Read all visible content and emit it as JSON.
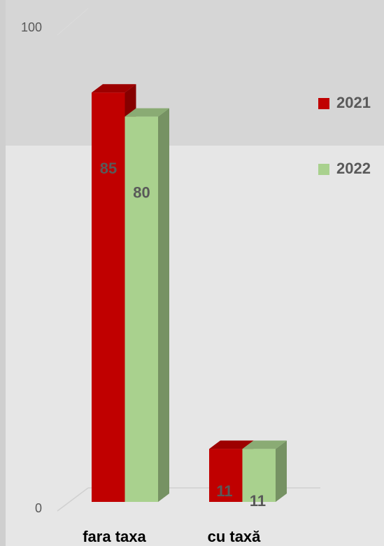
{
  "chart_data": {
    "type": "bar3d",
    "categories": [
      "fara taxa",
      "cu taxă"
    ],
    "series": [
      {
        "name": "2021",
        "color": "#c00000",
        "values": [
          85,
          11
        ]
      },
      {
        "name": "2022",
        "color": "#a9d18e",
        "values": [
          80,
          11
        ]
      }
    ],
    "ylim": [
      0,
      100
    ],
    "yticks": [
      0,
      100
    ],
    "legend": "right"
  }
}
